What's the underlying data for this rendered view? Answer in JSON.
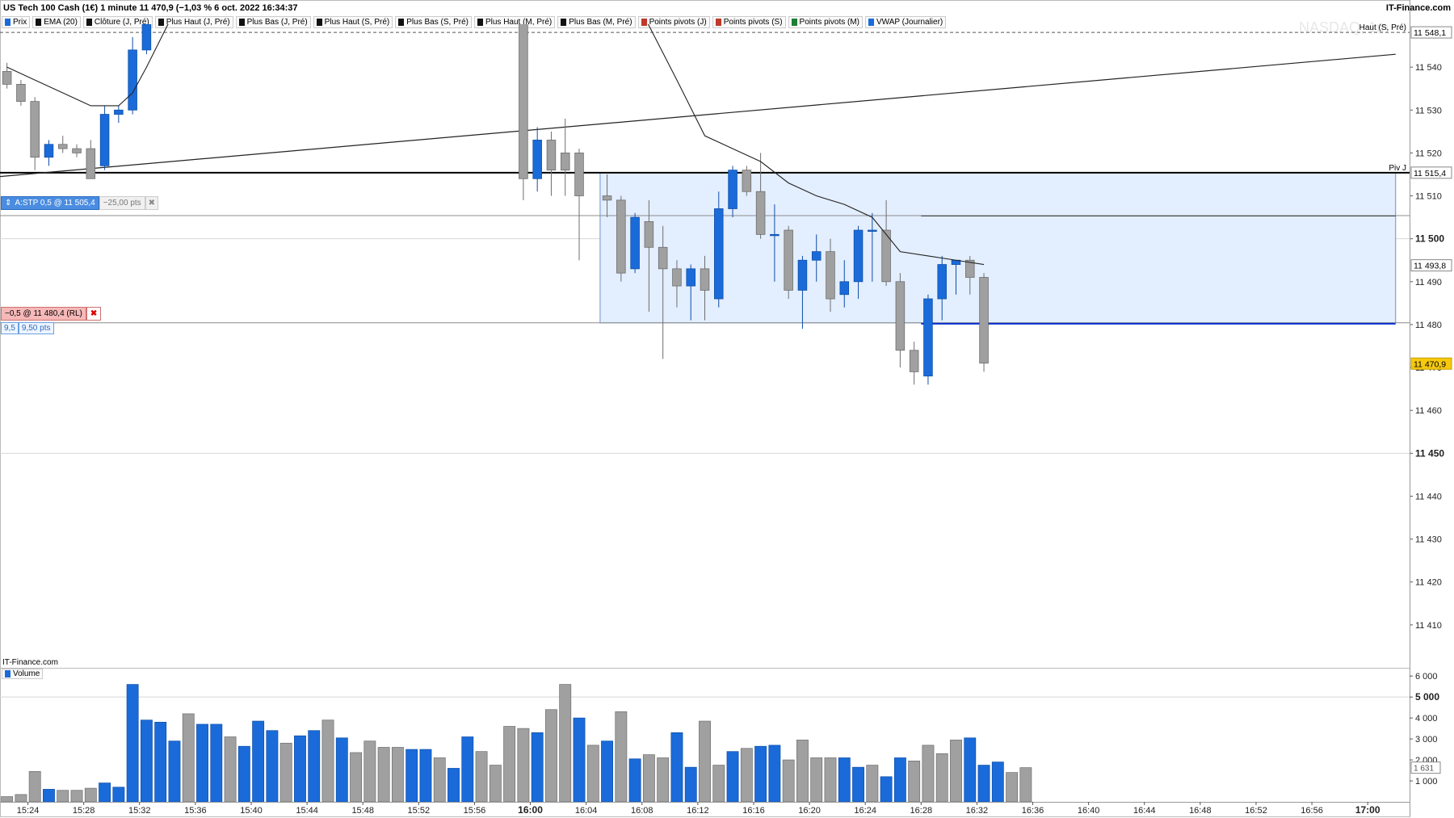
{
  "header": {
    "title": "US Tech 100 Cash (1€) 1 minute 11 470,9 (−1,03 % 6 oct. 2022 16:34:37",
    "brand": "IT-Finance.com",
    "watermark": "NASDAQ, 1m"
  },
  "legend": [
    {
      "label": "Prix",
      "color": "#1a6bd9"
    },
    {
      "label": "EMA (20)",
      "color": "#111111"
    },
    {
      "label": "Clôture (J, Pré)",
      "color": "#111111"
    },
    {
      "label": "Plus Haut (J, Pré)",
      "color": "#111111"
    },
    {
      "label": "Plus Bas (J, Pré)",
      "color": "#111111"
    },
    {
      "label": "Plus Haut (S, Pré)",
      "color": "#111111"
    },
    {
      "label": "Plus Bas (S, Pré)",
      "color": "#111111"
    },
    {
      "label": "Plus Haut (M, Pré)",
      "color": "#111111"
    },
    {
      "label": "Plus Bas (M, Pré)",
      "color": "#111111"
    },
    {
      "label": "Points pivots (J)",
      "color": "#c0392b"
    },
    {
      "label": "Points pivots (S)",
      "color": "#c0392b"
    },
    {
      "label": "Points pivots (M)",
      "color": "#1e7e34"
    },
    {
      "label": "VWAP (Journalier)",
      "color": "#1a6bd9"
    }
  ],
  "orders": {
    "stop_label": "A:STP 0,5 @ 11 505,4",
    "stop_pts": "−25,00 pts",
    "limit_label": "−0,5 @ 11 480,4 (RL)",
    "limit_qty": "9,5",
    "limit_pts": "9,50 pts"
  },
  "footer": {
    "source": "IT-Finance.com",
    "volume_label": "Volume"
  },
  "chart_data": {
    "type": "candlestick",
    "instrument": "US Tech 100 Cash (1€)",
    "timeframe": "1 minute",
    "y_axis": {
      "range": [
        11400,
        11550
      ],
      "ticks": [
        11410,
        11420,
        11430,
        11440,
        11450,
        11460,
        11470,
        11480,
        11490,
        11500,
        11510,
        11520,
        11530,
        11540
      ],
      "tick_labels": [
        "11 410",
        "11 420",
        "11 430",
        "11 440",
        "11 450",
        "11 460",
        "11 470",
        "11 480",
        "11 490",
        "11 500",
        "11 510",
        "11 520",
        "11 530",
        "11 540"
      ],
      "bold_ticks": [
        11450,
        11500
      ]
    },
    "x_axis": {
      "range_minutes": [
        "15:22",
        "17:03"
      ],
      "ticks": [
        "15:24",
        "15:28",
        "15:32",
        "15:36",
        "15:40",
        "15:44",
        "15:48",
        "15:52",
        "15:56",
        "16:00",
        "16:04",
        "16:08",
        "16:12",
        "16:16",
        "16:20",
        "16:24",
        "16:28",
        "16:32",
        "16:36",
        "16:40",
        "16:44",
        "16:48",
        "16:52",
        "16:56",
        "17:00"
      ],
      "bold_ticks": [
        "16:00",
        "17:00"
      ]
    },
    "price_tags": [
      {
        "label": "Haut (S, Pré)",
        "value": 11548.1,
        "text": "11 548,1",
        "style": "dashed"
      },
      {
        "label": "Piv J",
        "value": 11515.4,
        "text": "11 515,4",
        "style": "solid-bold"
      },
      {
        "label": "",
        "value": 11493.8,
        "text": "11 493,8",
        "style": "plain"
      },
      {
        "label": "",
        "value": 11470.9,
        "text": "11 470,9",
        "style": "last"
      }
    ],
    "candles": [
      {
        "t": "15:22",
        "o": 11539,
        "h": 11541,
        "l": 11535,
        "c": 11536
      },
      {
        "t": "15:23",
        "o": 11536,
        "h": 11537,
        "l": 11531,
        "c": 11532
      },
      {
        "t": "15:24",
        "o": 11532,
        "h": 11533,
        "l": 11516,
        "c": 11519
      },
      {
        "t": "15:25",
        "o": 11519,
        "h": 11523,
        "l": 11517,
        "c": 11522
      },
      {
        "t": "15:26",
        "o": 11522,
        "h": 11524,
        "l": 11520,
        "c": 11521
      },
      {
        "t": "15:27",
        "o": 11521,
        "h": 11522,
        "l": 11519,
        "c": 11520
      },
      {
        "t": "15:28",
        "o": 11521,
        "h": 11523,
        "l": 11514,
        "c": 11514
      },
      {
        "t": "15:29",
        "o": 11517,
        "h": 11531,
        "l": 11516,
        "c": 11529
      },
      {
        "t": "15:30",
        "o": 11529,
        "h": 11531,
        "l": 11527,
        "c": 11530
      },
      {
        "t": "15:31",
        "o": 11530,
        "h": 11547,
        "l": 11529,
        "c": 11544
      },
      {
        "t": "15:32",
        "o": 11544,
        "h": 11552,
        "l": 11543,
        "c": 11550
      },
      {
        "t": "15:59",
        "o": 11555,
        "h": 11556,
        "l": 11509,
        "c": 11514
      },
      {
        "t": "16:00",
        "o": 11514,
        "h": 11526,
        "l": 11511,
        "c": 11523
      },
      {
        "t": "16:01",
        "o": 11523,
        "h": 11525,
        "l": 11510,
        "c": 11516
      },
      {
        "t": "16:02",
        "o": 11520,
        "h": 11528,
        "l": 11510,
        "c": 11516
      },
      {
        "t": "16:03",
        "o": 11520,
        "h": 11521,
        "l": 11495,
        "c": 11510
      },
      {
        "t": "16:05",
        "o": 11510,
        "h": 11515,
        "l": 11505,
        "c": 11509
      },
      {
        "t": "16:06",
        "o": 11509,
        "h": 11510,
        "l": 11490,
        "c": 11492
      },
      {
        "t": "16:07",
        "o": 11493,
        "h": 11506,
        "l": 11492,
        "c": 11505
      },
      {
        "t": "16:08",
        "o": 11504,
        "h": 11509,
        "l": 11483,
        "c": 11498
      },
      {
        "t": "16:09",
        "o": 11498,
        "h": 11503,
        "l": 11472,
        "c": 11493
      },
      {
        "t": "16:10",
        "o": 11493,
        "h": 11495,
        "l": 11484,
        "c": 11489
      },
      {
        "t": "16:11",
        "o": 11489,
        "h": 11494,
        "l": 11481,
        "c": 11493
      },
      {
        "t": "16:12",
        "o": 11493,
        "h": 11496,
        "l": 11481,
        "c": 11488
      },
      {
        "t": "16:13",
        "o": 11486,
        "h": 11511,
        "l": 11484,
        "c": 11507
      },
      {
        "t": "16:14",
        "o": 11507,
        "h": 11517,
        "l": 11505,
        "c": 11516
      },
      {
        "t": "16:15",
        "o": 11516,
        "h": 11517,
        "l": 11510,
        "c": 11511
      },
      {
        "t": "16:16",
        "o": 11511,
        "h": 11520,
        "l": 11500,
        "c": 11501
      },
      {
        "t": "16:17",
        "o": 11501,
        "h": 11508,
        "l": 11490,
        "c": 11501
      },
      {
        "t": "16:18",
        "o": 11502,
        "h": 11503,
        "l": 11486,
        "c": 11488
      },
      {
        "t": "16:19",
        "o": 11488,
        "h": 11496,
        "l": 11479,
        "c": 11495
      },
      {
        "t": "16:20",
        "o": 11495,
        "h": 11501,
        "l": 11490,
        "c": 11497
      },
      {
        "t": "16:21",
        "o": 11497,
        "h": 11500,
        "l": 11483,
        "c": 11486
      },
      {
        "t": "16:22",
        "o": 11487,
        "h": 11495,
        "l": 11484,
        "c": 11490
      },
      {
        "t": "16:23",
        "o": 11490,
        "h": 11503,
        "l": 11486,
        "c": 11502
      },
      {
        "t": "16:24",
        "o": 11502,
        "h": 11506,
        "l": 11490,
        "c": 11502
      },
      {
        "t": "16:25",
        "o": 11502,
        "h": 11509,
        "l": 11489,
        "c": 11490
      },
      {
        "t": "16:26",
        "o": 11490,
        "h": 11492,
        "l": 11470,
        "c": 11474
      },
      {
        "t": "16:27",
        "o": 11474,
        "h": 11476,
        "l": 11466,
        "c": 11469
      },
      {
        "t": "16:28",
        "o": 11468,
        "h": 11487,
        "l": 11466,
        "c": 11486
      },
      {
        "t": "16:29",
        "o": 11486,
        "h": 11496,
        "l": 11481,
        "c": 11494
      },
      {
        "t": "16:30",
        "o": 11494,
        "h": 11495,
        "l": 11487,
        "c": 11495
      },
      {
        "t": "16:31",
        "o": 11495,
        "h": 11496,
        "l": 11487,
        "c": 11491
      },
      {
        "t": "16:32",
        "o": 11491,
        "h": 11492,
        "l": 11469,
        "c": 11471
      }
    ],
    "ema20": [
      {
        "t": "15:22",
        "v": 11540
      },
      {
        "t": "15:24",
        "v": 11537
      },
      {
        "t": "15:26",
        "v": 11534
      },
      {
        "t": "15:28",
        "v": 11531
      },
      {
        "t": "15:30",
        "v": 11531
      },
      {
        "t": "15:31",
        "v": 11534
      },
      {
        "t": "15:32",
        "v": 11540
      },
      {
        "t": "15:34",
        "v": 11553
      },
      {
        "t": "16:07",
        "v": 11556
      },
      {
        "t": "16:10",
        "v": 11537
      },
      {
        "t": "16:12",
        "v": 11524
      },
      {
        "t": "16:14",
        "v": 11521
      },
      {
        "t": "16:16",
        "v": 11518
      },
      {
        "t": "16:18",
        "v": 11513
      },
      {
        "t": "16:20",
        "v": 11510
      },
      {
        "t": "16:22",
        "v": 11508
      },
      {
        "t": "16:24",
        "v": 11505
      },
      {
        "t": "16:26",
        "v": 11497
      },
      {
        "t": "16:28",
        "v": 11496
      },
      {
        "t": "16:30",
        "v": 11495
      },
      {
        "t": "16:32",
        "v": 11494
      }
    ],
    "trendline": [
      {
        "t": "15:22",
        "v": 11514.5
      },
      {
        "t": "17:02",
        "v": 11543
      }
    ],
    "horizontal_lines": [
      {
        "name": "Haut (S, Pré)",
        "value": 11548.1,
        "style": "dashed",
        "color": "#555555"
      },
      {
        "name": "Piv J",
        "value": 11515.4,
        "style": "solid",
        "color": "#000000"
      },
      {
        "name": "stop-order",
        "value": 11505.4,
        "style": "solid",
        "color": "#8c8c8c"
      },
      {
        "name": "limit-order",
        "value": 11480.4,
        "style": "solid",
        "color": "#8c8c8c"
      }
    ],
    "vwap_segments": [
      {
        "from": "16:28",
        "to": "17:02",
        "value": 11505.3
      },
      {
        "from": "16:28",
        "to": "17:02",
        "value": 11480.2
      }
    ],
    "zone": {
      "from": "16:05",
      "to": "17:02",
      "top": 11515.4,
      "bottom": 11480.4
    },
    "volume": {
      "y_axis": {
        "range": [
          0,
          6200
        ],
        "ticks": [
          1000,
          2000,
          3000,
          4000,
          5000,
          6000
        ],
        "tick_labels": [
          "1 000",
          "2 000",
          "3 000",
          "4 000",
          "5 000",
          "6 000"
        ],
        "bold_ticks": [
          5000
        ]
      },
      "last_value_text": "1 631",
      "bars": [
        {
          "t": "15:22",
          "v": 250,
          "up": false
        },
        {
          "t": "15:23",
          "v": 350,
          "up": false
        },
        {
          "t": "15:24",
          "v": 1450,
          "up": false
        },
        {
          "t": "15:25",
          "v": 600,
          "up": true
        },
        {
          "t": "15:26",
          "v": 550,
          "up": false
        },
        {
          "t": "15:27",
          "v": 550,
          "up": false
        },
        {
          "t": "15:28",
          "v": 650,
          "up": false
        },
        {
          "t": "15:29",
          "v": 900,
          "up": true
        },
        {
          "t": "15:30",
          "v": 700,
          "up": true
        },
        {
          "t": "15:31",
          "v": 5600,
          "up": true
        },
        {
          "t": "15:32",
          "v": 3900,
          "up": true
        },
        {
          "t": "15:33",
          "v": 3800,
          "up": true
        },
        {
          "t": "15:34",
          "v": 2900,
          "up": true
        },
        {
          "t": "15:35",
          "v": 4200,
          "up": false
        },
        {
          "t": "15:36",
          "v": 3700,
          "up": true
        },
        {
          "t": "15:37",
          "v": 3700,
          "up": true
        },
        {
          "t": "15:38",
          "v": 3100,
          "up": false
        },
        {
          "t": "15:39",
          "v": 2650,
          "up": true
        },
        {
          "t": "15:40",
          "v": 3850,
          "up": true
        },
        {
          "t": "15:41",
          "v": 3400,
          "up": true
        },
        {
          "t": "15:42",
          "v": 2800,
          "up": false
        },
        {
          "t": "15:43",
          "v": 3150,
          "up": true
        },
        {
          "t": "15:44",
          "v": 3400,
          "up": true
        },
        {
          "t": "15:45",
          "v": 3900,
          "up": false
        },
        {
          "t": "15:46",
          "v": 3050,
          "up": true
        },
        {
          "t": "15:47",
          "v": 2350,
          "up": false
        },
        {
          "t": "15:48",
          "v": 2900,
          "up": false
        },
        {
          "t": "15:49",
          "v": 2600,
          "up": false
        },
        {
          "t": "15:50",
          "v": 2600,
          "up": false
        },
        {
          "t": "15:51",
          "v": 2500,
          "up": true
        },
        {
          "t": "15:52",
          "v": 2500,
          "up": true
        },
        {
          "t": "15:53",
          "v": 2100,
          "up": false
        },
        {
          "t": "15:54",
          "v": 1600,
          "up": true
        },
        {
          "t": "15:55",
          "v": 3100,
          "up": true
        },
        {
          "t": "15:56",
          "v": 2400,
          "up": false
        },
        {
          "t": "15:57",
          "v": 1750,
          "up": false
        },
        {
          "t": "15:58",
          "v": 3600,
          "up": false
        },
        {
          "t": "15:59",
          "v": 3500,
          "up": false
        },
        {
          "t": "16:00",
          "v": 3300,
          "up": true
        },
        {
          "t": "16:01",
          "v": 4400,
          "up": false
        },
        {
          "t": "16:02",
          "v": 5600,
          "up": false
        },
        {
          "t": "16:03",
          "v": 4000,
          "up": true
        },
        {
          "t": "16:04",
          "v": 2700,
          "up": false
        },
        {
          "t": "16:05",
          "v": 2900,
          "up": true
        },
        {
          "t": "16:06",
          "v": 4300,
          "up": false
        },
        {
          "t": "16:07",
          "v": 2050,
          "up": true
        },
        {
          "t": "16:08",
          "v": 2250,
          "up": false
        },
        {
          "t": "16:09",
          "v": 2100,
          "up": false
        },
        {
          "t": "16:10",
          "v": 3300,
          "up": true
        },
        {
          "t": "16:11",
          "v": 1650,
          "up": true
        },
        {
          "t": "16:12",
          "v": 3850,
          "up": false
        },
        {
          "t": "16:13",
          "v": 1750,
          "up": false
        },
        {
          "t": "16:14",
          "v": 2400,
          "up": true
        },
        {
          "t": "16:15",
          "v": 2550,
          "up": false
        },
        {
          "t": "16:16",
          "v": 2650,
          "up": true
        },
        {
          "t": "16:17",
          "v": 2700,
          "up": true
        },
        {
          "t": "16:18",
          "v": 2000,
          "up": false
        },
        {
          "t": "16:19",
          "v": 2950,
          "up": false
        },
        {
          "t": "16:20",
          "v": 2100,
          "up": false
        },
        {
          "t": "16:21",
          "v": 2100,
          "up": false
        },
        {
          "t": "16:22",
          "v": 2100,
          "up": true
        },
        {
          "t": "16:23",
          "v": 1650,
          "up": true
        },
        {
          "t": "16:24",
          "v": 1750,
          "up": false
        },
        {
          "t": "16:25",
          "v": 1200,
          "up": true
        },
        {
          "t": "16:26",
          "v": 2100,
          "up": true
        },
        {
          "t": "16:27",
          "v": 1950,
          "up": false
        },
        {
          "t": "16:28",
          "v": 2700,
          "up": false
        },
        {
          "t": "16:29",
          "v": 2300,
          "up": false
        },
        {
          "t": "16:30",
          "v": 2950,
          "up": false
        },
        {
          "t": "16:31",
          "v": 3050,
          "up": true
        },
        {
          "t": "16:32",
          "v": 1750,
          "up": true
        },
        {
          "t": "16:33",
          "v": 1900,
          "up": true
        },
        {
          "t": "16:34",
          "v": 1400,
          "up": false
        },
        {
          "t": "16:35",
          "v": 1631,
          "up": false
        }
      ]
    },
    "colors": {
      "up": "#1a6bd9",
      "down": "#a0a0a0",
      "up_edge": "#0f4fa8",
      "down_edge": "#6e6e6e",
      "zone_fill": "#e3eeff",
      "zone_edge": "#6a94cc",
      "vwap": "#0a2fd0",
      "last_price": "#f6c90e"
    }
  }
}
